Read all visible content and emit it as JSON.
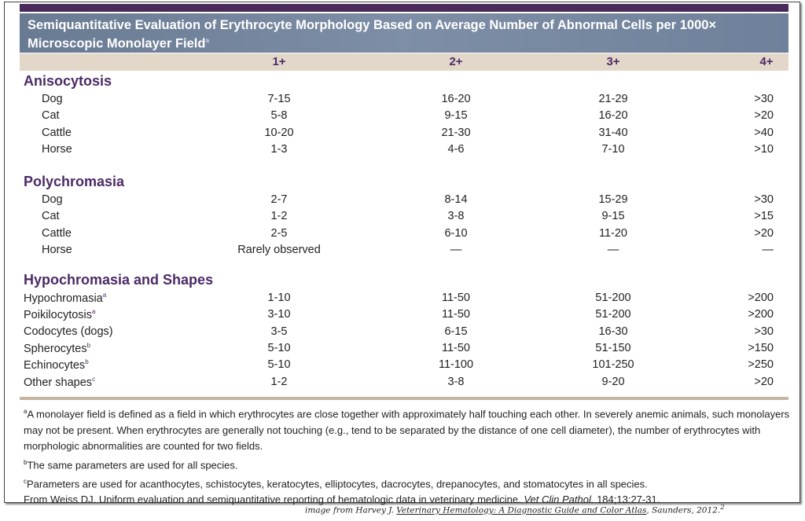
{
  "title": "Semiquantitative Evaluation of Erythrocyte Morphology Based on Average Number of Abnormal Cells per 1000× Microscopic Monolayer Field",
  "title_sup": "a",
  "columns": [
    "1+",
    "2+",
    "3+",
    "4+"
  ],
  "sections": [
    {
      "name": "Anisocytosis",
      "rows": [
        {
          "label": "Dog",
          "sup": "",
          "values": [
            "7-15",
            "16-20",
            "21-29",
            ">30"
          ]
        },
        {
          "label": "Cat",
          "sup": "",
          "values": [
            "5-8",
            "9-15",
            "16-20",
            ">20"
          ]
        },
        {
          "label": "Cattle",
          "sup": "",
          "values": [
            "10-20",
            "21-30",
            "31-40",
            ">40"
          ]
        },
        {
          "label": "Horse",
          "sup": "",
          "values": [
            "1-3",
            "4-6",
            "7-10",
            ">10"
          ]
        }
      ]
    },
    {
      "name": "Polychromasia",
      "rows": [
        {
          "label": "Dog",
          "sup": "",
          "values": [
            "2-7",
            "8-14",
            "15-29",
            ">30"
          ]
        },
        {
          "label": "Cat",
          "sup": "",
          "values": [
            "1-2",
            "3-8",
            "9-15",
            ">15"
          ]
        },
        {
          "label": "Cattle",
          "sup": "",
          "values": [
            "2-5",
            "6-10",
            "11-20",
            ">20"
          ]
        },
        {
          "label": "Horse",
          "sup": "",
          "values": [
            "Rarely observed",
            "—",
            "—",
            "—"
          ]
        }
      ]
    },
    {
      "name": "Hypochromasia and Shapes",
      "rows": [
        {
          "label": "Hypochromasia",
          "sup": "a",
          "values": [
            "1-10",
            "11-50",
            "51-200",
            ">200"
          ]
        },
        {
          "label": "Poikilocytosis",
          "sup": "a",
          "values": [
            "3-10",
            "11-50",
            "51-200",
            ">200"
          ]
        },
        {
          "label": "Codocytes (dogs)",
          "sup": "",
          "values": [
            "3-5",
            "6-15",
            "16-30",
            ">30"
          ]
        },
        {
          "label": "Spherocytes",
          "sup": "b",
          "values": [
            "5-10",
            "11-50",
            "51-150",
            ">150"
          ]
        },
        {
          "label": "Echinocytes",
          "sup": "b",
          "values": [
            "5-10",
            "11-100",
            "101-250",
            ">250"
          ]
        },
        {
          "label": "Other shapes",
          "sup": "c",
          "values": [
            "1-2",
            "3-8",
            "9-20",
            ">20"
          ]
        }
      ]
    }
  ],
  "footnotes": [
    {
      "mark": "a",
      "text": "A monolayer field is defined as a field in which erythrocytes are close together with approximately half touching each other. In severely anemic animals, such monolayers may not be present. When erythrocytes are generally not touching (e.g., tend to be separated by the distance of one cell diameter), the number of erythrocytes with morphologic abnormalities are counted for two fields."
    },
    {
      "mark": "b",
      "text": "The same parameters are used for all species."
    },
    {
      "mark": "c",
      "text": "Parameters are used for acanthocytes, schistocytes, keratocytes, elliptocytes, dacrocytes, drepanocytes, and stomatocytes in all species."
    }
  ],
  "source": {
    "prefix": "From Weiss DJ. Uniform evaluation and semiquantitative reporting of hematologic data in veterinary medicine. ",
    "journal": "Vet Clin Pathol.",
    "suffix": " 184;13:27-31."
  },
  "credit": {
    "prefix": "image from Harvey J. ",
    "book": "Veterinary Hematology: A Diagnostic Guide and Color Atlas",
    "suffix": ", Saunders, 2012.",
    "sup": "2"
  },
  "colors": {
    "purple": "#4b2a66",
    "title_band": "#7487a0",
    "header_band": "#e3d7c9",
    "rule": "#c6b4a0"
  }
}
